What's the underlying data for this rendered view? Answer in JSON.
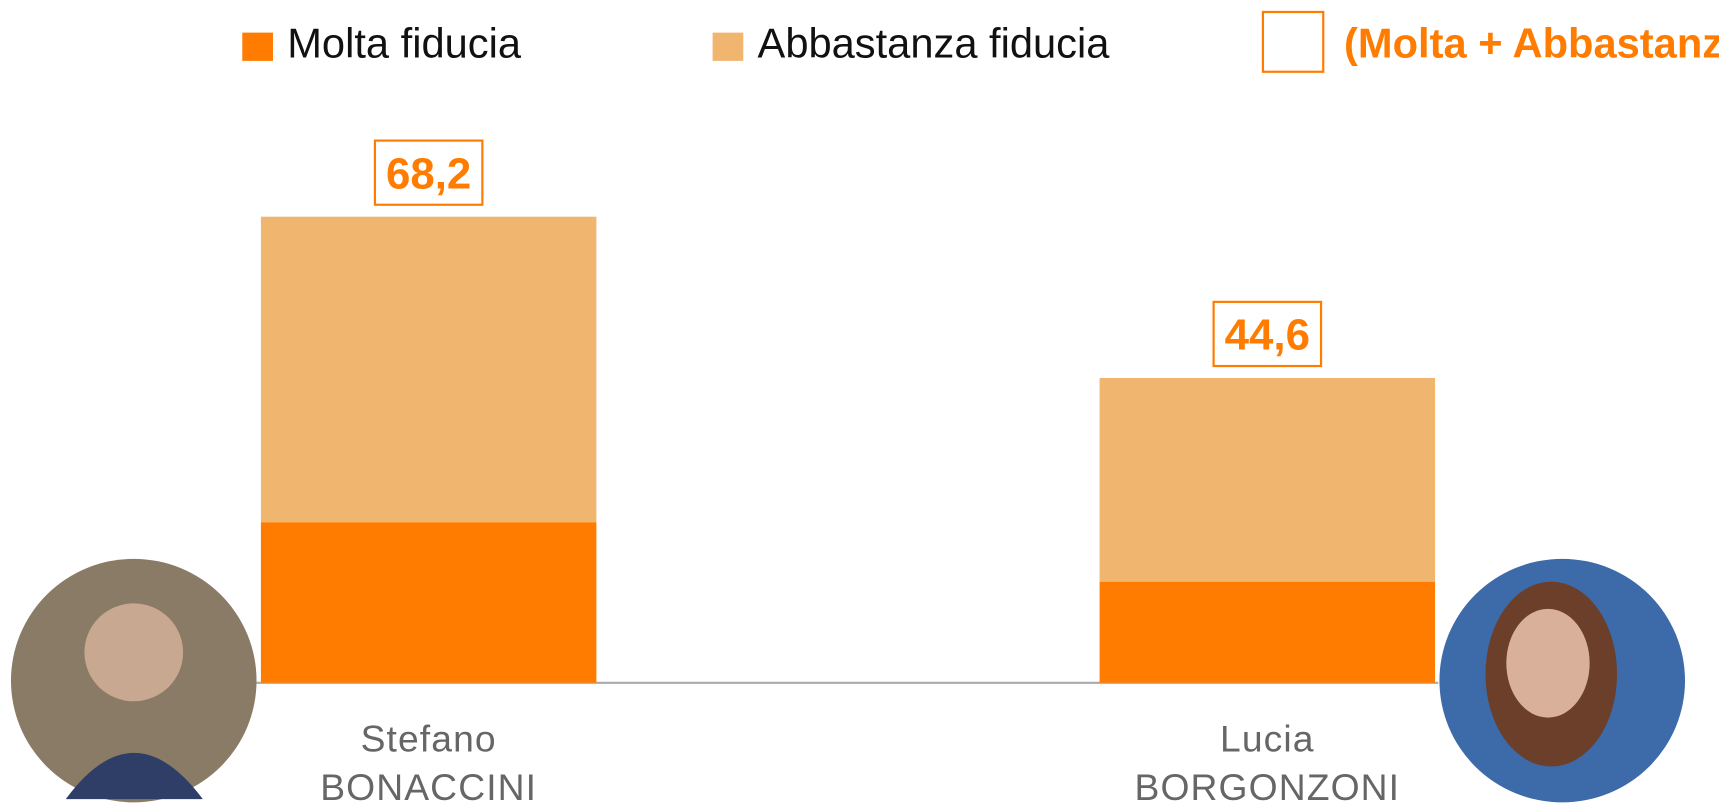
{
  "chart_data": {
    "type": "stacked-bar",
    "categories": [
      [
        "Stefano",
        "BONACCINI"
      ],
      [
        "Lucia",
        "BORGONZONI"
      ]
    ],
    "series": [
      {
        "name": "Molta fiducia",
        "color": "#ff7c00",
        "values": [
          23.5,
          14.8
        ]
      },
      {
        "name": "Abbastanza fiducia",
        "color": "#f0b56e",
        "values": [
          44.7,
          29.8
        ]
      }
    ],
    "totals": {
      "name": "(Molta + Abbastanza)",
      "color": "#ff7c00",
      "values": [
        68.2,
        44.6
      ],
      "value_labels": [
        "68,2",
        "44,6"
      ]
    },
    "ylim": [
      0,
      70
    ]
  }
}
